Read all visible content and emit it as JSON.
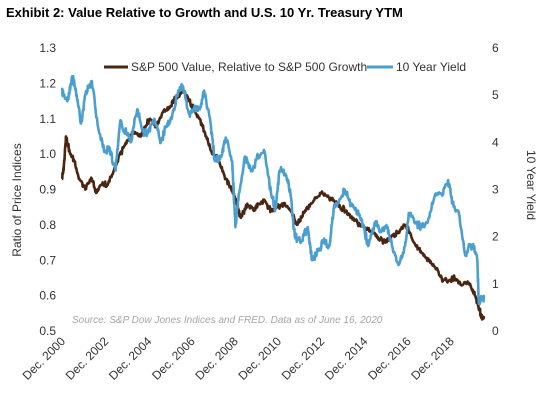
{
  "title": "Exhibit 2: Value Relative to Growth and U.S. 10 Yr. Treasury YTM",
  "chart_data": {
    "type": "line",
    "ylabel_left": "Ratio of Price Indices",
    "ylabel_right": "10 Year Yield",
    "ylim_left": [
      0.5,
      1.3
    ],
    "ylim_right": [
      0,
      6
    ],
    "yticks_left": [
      "0.5",
      "0.6",
      "0.7",
      "0.8",
      "0.9",
      "1.0",
      "1.1",
      "1.2",
      "1.3"
    ],
    "yticks_right": [
      "0",
      "1",
      "2",
      "3",
      "4",
      "5",
      "6"
    ],
    "xlim": [
      2000.92,
      2020.46
    ],
    "xticks": [
      {
        "label": "Dec. 2000",
        "x": 2000.92
      },
      {
        "label": "Dec. 2002",
        "x": 2002.92
      },
      {
        "label": "Dec. 2004",
        "x": 2004.92
      },
      {
        "label": "Dec. 2006",
        "x": 2006.92
      },
      {
        "label": "Dec. 2008",
        "x": 2008.92
      },
      {
        "label": "Dec. 2010",
        "x": 2010.92
      },
      {
        "label": "Dec. 2012",
        "x": 2012.92
      },
      {
        "label": "Dec. 2014",
        "x": 2014.92
      },
      {
        "label": "Dec. 2016",
        "x": 2016.92
      },
      {
        "label": "Dec. 2018",
        "x": 2018.92
      }
    ],
    "grid": false,
    "legend_position": "top",
    "source": "Source: S&P Dow Jones Indices and FRED. Data as of June 16, 2020",
    "series": [
      {
        "name": "S&P 500 Value, Relative to S&P 500 Growth",
        "axis": "left",
        "color": "#4a2512",
        "points": [
          [
            2000.92,
            0.93
          ],
          [
            2001.0,
            0.96
          ],
          [
            2001.1,
            1.05
          ],
          [
            2001.3,
            1.0
          ],
          [
            2001.5,
            0.98
          ],
          [
            2001.7,
            0.93
          ],
          [
            2002.0,
            0.9
          ],
          [
            2002.3,
            0.93
          ],
          [
            2002.5,
            0.89
          ],
          [
            2002.8,
            0.92
          ],
          [
            2003.0,
            0.91
          ],
          [
            2003.3,
            0.95
          ],
          [
            2003.6,
            1.0
          ],
          [
            2003.9,
            1.03
          ],
          [
            2004.2,
            1.06
          ],
          [
            2004.5,
            1.05
          ],
          [
            2004.8,
            1.08
          ],
          [
            2005.0,
            1.1
          ],
          [
            2005.3,
            1.08
          ],
          [
            2005.6,
            1.12
          ],
          [
            2005.9,
            1.13
          ],
          [
            2006.2,
            1.16
          ],
          [
            2006.5,
            1.18
          ],
          [
            2006.8,
            1.15
          ],
          [
            2007.0,
            1.13
          ],
          [
            2007.3,
            1.1
          ],
          [
            2007.6,
            1.05
          ],
          [
            2007.9,
            1.0
          ],
          [
            2008.2,
            0.98
          ],
          [
            2008.5,
            0.93
          ],
          [
            2008.8,
            0.9
          ],
          [
            2009.0,
            0.86
          ],
          [
            2009.2,
            0.82
          ],
          [
            2009.5,
            0.86
          ],
          [
            2009.8,
            0.84
          ],
          [
            2010.0,
            0.86
          ],
          [
            2010.3,
            0.87
          ],
          [
            2010.6,
            0.84
          ],
          [
            2010.9,
            0.85
          ],
          [
            2011.2,
            0.86
          ],
          [
            2011.5,
            0.84
          ],
          [
            2011.8,
            0.8
          ],
          [
            2012.0,
            0.82
          ],
          [
            2012.3,
            0.85
          ],
          [
            2012.6,
            0.87
          ],
          [
            2012.9,
            0.89
          ],
          [
            2013.2,
            0.88
          ],
          [
            2013.5,
            0.87
          ],
          [
            2013.8,
            0.85
          ],
          [
            2014.1,
            0.84
          ],
          [
            2014.4,
            0.82
          ],
          [
            2014.7,
            0.8
          ],
          [
            2015.0,
            0.79
          ],
          [
            2015.3,
            0.78
          ],
          [
            2015.6,
            0.76
          ],
          [
            2015.9,
            0.75
          ],
          [
            2016.2,
            0.77
          ],
          [
            2016.5,
            0.78
          ],
          [
            2016.8,
            0.8
          ],
          [
            2017.0,
            0.78
          ],
          [
            2017.3,
            0.74
          ],
          [
            2017.6,
            0.72
          ],
          [
            2017.9,
            0.7
          ],
          [
            2018.2,
            0.68
          ],
          [
            2018.5,
            0.65
          ],
          [
            2018.8,
            0.64
          ],
          [
            2019.1,
            0.65
          ],
          [
            2019.4,
            0.63
          ],
          [
            2019.7,
            0.64
          ],
          [
            2020.0,
            0.61
          ],
          [
            2020.15,
            0.58
          ],
          [
            2020.25,
            0.56
          ],
          [
            2020.35,
            0.54
          ],
          [
            2020.46,
            0.535
          ]
        ]
      },
      {
        "name": "10 Year Yield",
        "axis": "right",
        "color": "#4a9fd0",
        "points": [
          [
            2000.92,
            5.1
          ],
          [
            2001.0,
            5.0
          ],
          [
            2001.2,
            4.9
          ],
          [
            2001.4,
            5.4
          ],
          [
            2001.6,
            5.0
          ],
          [
            2001.8,
            4.4
          ],
          [
            2002.0,
            5.0
          ],
          [
            2002.3,
            5.3
          ],
          [
            2002.6,
            4.3
          ],
          [
            2002.9,
            3.8
          ],
          [
            2003.1,
            3.9
          ],
          [
            2003.4,
            3.4
          ],
          [
            2003.6,
            4.4
          ],
          [
            2003.9,
            4.2
          ],
          [
            2004.1,
            4.0
          ],
          [
            2004.4,
            4.7
          ],
          [
            2004.7,
            4.2
          ],
          [
            2004.9,
            4.2
          ],
          [
            2005.2,
            4.5
          ],
          [
            2005.5,
            4.0
          ],
          [
            2005.8,
            4.4
          ],
          [
            2006.0,
            4.5
          ],
          [
            2006.3,
            5.1
          ],
          [
            2006.5,
            5.2
          ],
          [
            2006.8,
            4.6
          ],
          [
            2007.0,
            4.7
          ],
          [
            2007.3,
            4.7
          ],
          [
            2007.5,
            5.1
          ],
          [
            2007.8,
            4.4
          ],
          [
            2008.0,
            3.6
          ],
          [
            2008.3,
            3.7
          ],
          [
            2008.5,
            4.1
          ],
          [
            2008.8,
            3.6
          ],
          [
            2008.95,
            2.2
          ],
          [
            2009.1,
            2.9
          ],
          [
            2009.4,
            3.7
          ],
          [
            2009.7,
            3.4
          ],
          [
            2010.0,
            3.7
          ],
          [
            2010.3,
            3.8
          ],
          [
            2010.6,
            2.9
          ],
          [
            2010.8,
            2.6
          ],
          [
            2011.0,
            3.4
          ],
          [
            2011.3,
            3.3
          ],
          [
            2011.5,
            2.9
          ],
          [
            2011.7,
            2.0
          ],
          [
            2012.0,
            1.9
          ],
          [
            2012.3,
            2.2
          ],
          [
            2012.5,
            1.5
          ],
          [
            2012.8,
            1.7
          ],
          [
            2013.0,
            1.9
          ],
          [
            2013.3,
            1.8
          ],
          [
            2013.5,
            2.6
          ],
          [
            2013.8,
            2.8
          ],
          [
            2014.0,
            3.0
          ],
          [
            2014.3,
            2.7
          ],
          [
            2014.6,
            2.5
          ],
          [
            2014.9,
            2.2
          ],
          [
            2015.1,
            1.8
          ],
          [
            2015.4,
            2.3
          ],
          [
            2015.7,
            2.1
          ],
          [
            2016.0,
            2.2
          ],
          [
            2016.2,
            1.8
          ],
          [
            2016.5,
            1.4
          ],
          [
            2016.8,
            1.8
          ],
          [
            2017.0,
            2.5
          ],
          [
            2017.3,
            2.3
          ],
          [
            2017.6,
            2.2
          ],
          [
            2017.9,
            2.4
          ],
          [
            2018.2,
            2.9
          ],
          [
            2018.5,
            2.9
          ],
          [
            2018.8,
            3.2
          ],
          [
            2019.0,
            2.7
          ],
          [
            2019.3,
            2.5
          ],
          [
            2019.6,
            1.6
          ],
          [
            2019.8,
            1.8
          ],
          [
            2020.0,
            1.8
          ],
          [
            2020.15,
            1.5
          ],
          [
            2020.22,
            0.6
          ],
          [
            2020.35,
            0.7
          ],
          [
            2020.46,
            0.7
          ]
        ]
      }
    ]
  }
}
